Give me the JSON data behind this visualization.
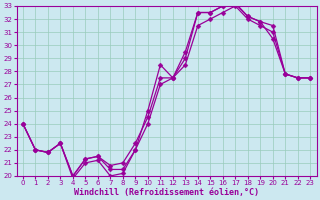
{
  "xlabel": "Windchill (Refroidissement éolien,°C)",
  "xlim": [
    -0.5,
    23.5
  ],
  "ylim": [
    20,
    33
  ],
  "xticks": [
    0,
    1,
    2,
    3,
    4,
    5,
    6,
    7,
    8,
    9,
    10,
    11,
    12,
    13,
    14,
    15,
    16,
    17,
    18,
    19,
    20,
    21,
    22,
    23
  ],
  "yticks": [
    20,
    21,
    22,
    23,
    24,
    25,
    26,
    27,
    28,
    29,
    30,
    31,
    32,
    33
  ],
  "bg_color": "#cce8f0",
  "line_color": "#990099",
  "line1_y": [
    24.0,
    22.0,
    21.8,
    22.5,
    20.0,
    21.3,
    21.5,
    20.8,
    21.0,
    22.5,
    24.5,
    27.5,
    27.5,
    29.0,
    32.5,
    32.5,
    33.0,
    33.2,
    32.2,
    31.8,
    31.5,
    27.8,
    27.5,
    27.5
  ],
  "line2_y": [
    24.0,
    22.0,
    21.8,
    22.5,
    20.0,
    21.3,
    21.5,
    20.5,
    20.5,
    22.0,
    24.0,
    27.0,
    27.5,
    28.5,
    31.5,
    32.0,
    32.5,
    33.0,
    32.0,
    31.5,
    31.0,
    27.8,
    27.5,
    27.5
  ],
  "line3_y": [
    24.0,
    22.0,
    21.8,
    22.5,
    19.8,
    21.0,
    21.2,
    20.0,
    20.2,
    22.0,
    25.0,
    28.5,
    27.5,
    29.5,
    32.5,
    32.5,
    33.0,
    33.2,
    32.2,
    31.8,
    30.5,
    27.8,
    27.5,
    27.5
  ],
  "grid_color": "#99ccbb",
  "tick_fontsize": 5,
  "xlabel_fontsize": 6,
  "marker_size": 2.5,
  "lw": 0.9
}
